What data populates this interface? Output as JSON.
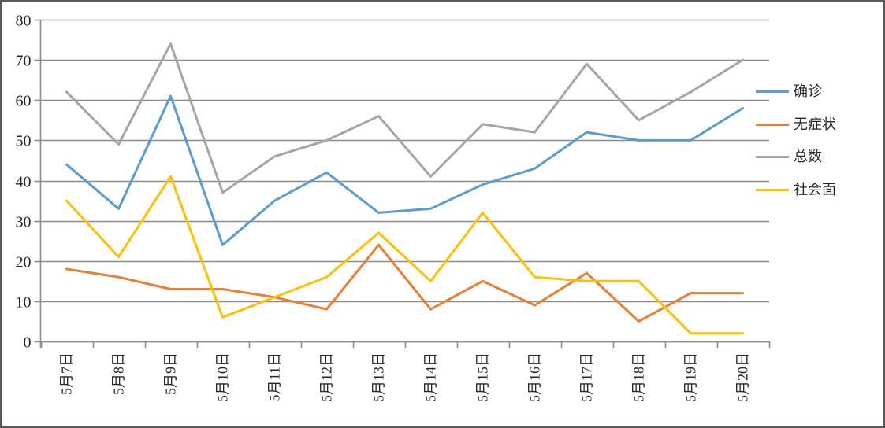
{
  "chart_data": {
    "type": "line",
    "title": "",
    "xlabel": "",
    "ylabel": "",
    "categories": [
      "5月7日",
      "5月8日",
      "5月9日",
      "5月10日",
      "5月11日",
      "5月12日",
      "5月13日",
      "5月14日",
      "5月15日",
      "5月16日",
      "5月17日",
      "5月18日",
      "5月19日",
      "5月20日"
    ],
    "series": [
      {
        "name": "确诊",
        "color": "#5B9BD5",
        "values": [
          44,
          33,
          61,
          24,
          35,
          42,
          32,
          33,
          39,
          43,
          52,
          50,
          50,
          58
        ]
      },
      {
        "name": "无症状",
        "color": "#ED7D31",
        "values": [
          18,
          16,
          13,
          13,
          11,
          8,
          24,
          8,
          15,
          9,
          17,
          5,
          12,
          12
        ]
      },
      {
        "name": "总数",
        "color": "#A5A5A5",
        "values": [
          62,
          49,
          74,
          37,
          46,
          50,
          56,
          41,
          54,
          52,
          69,
          55,
          62,
          70
        ]
      },
      {
        "name": "社会面",
        "color": "#FFC000",
        "values": [
          35,
          21,
          41,
          6,
          11,
          16,
          27,
          15,
          32,
          16,
          15,
          15,
          2,
          2
        ]
      }
    ],
    "y_axis": {
      "min": 0,
      "max": 80,
      "step": 10,
      "tick_labels": [
        "0",
        "10",
        "20",
        "30",
        "40",
        "50",
        "60",
        "70",
        "80"
      ]
    },
    "grid": true,
    "legend_position": "right",
    "x_label_rotation": -90
  },
  "styles": {
    "background": "#FFFFFF",
    "grid_color": "#8C8C8C",
    "axis_color": "#8C8C8C",
    "text_color": "#262626",
    "frame_border_color": "#595959"
  }
}
